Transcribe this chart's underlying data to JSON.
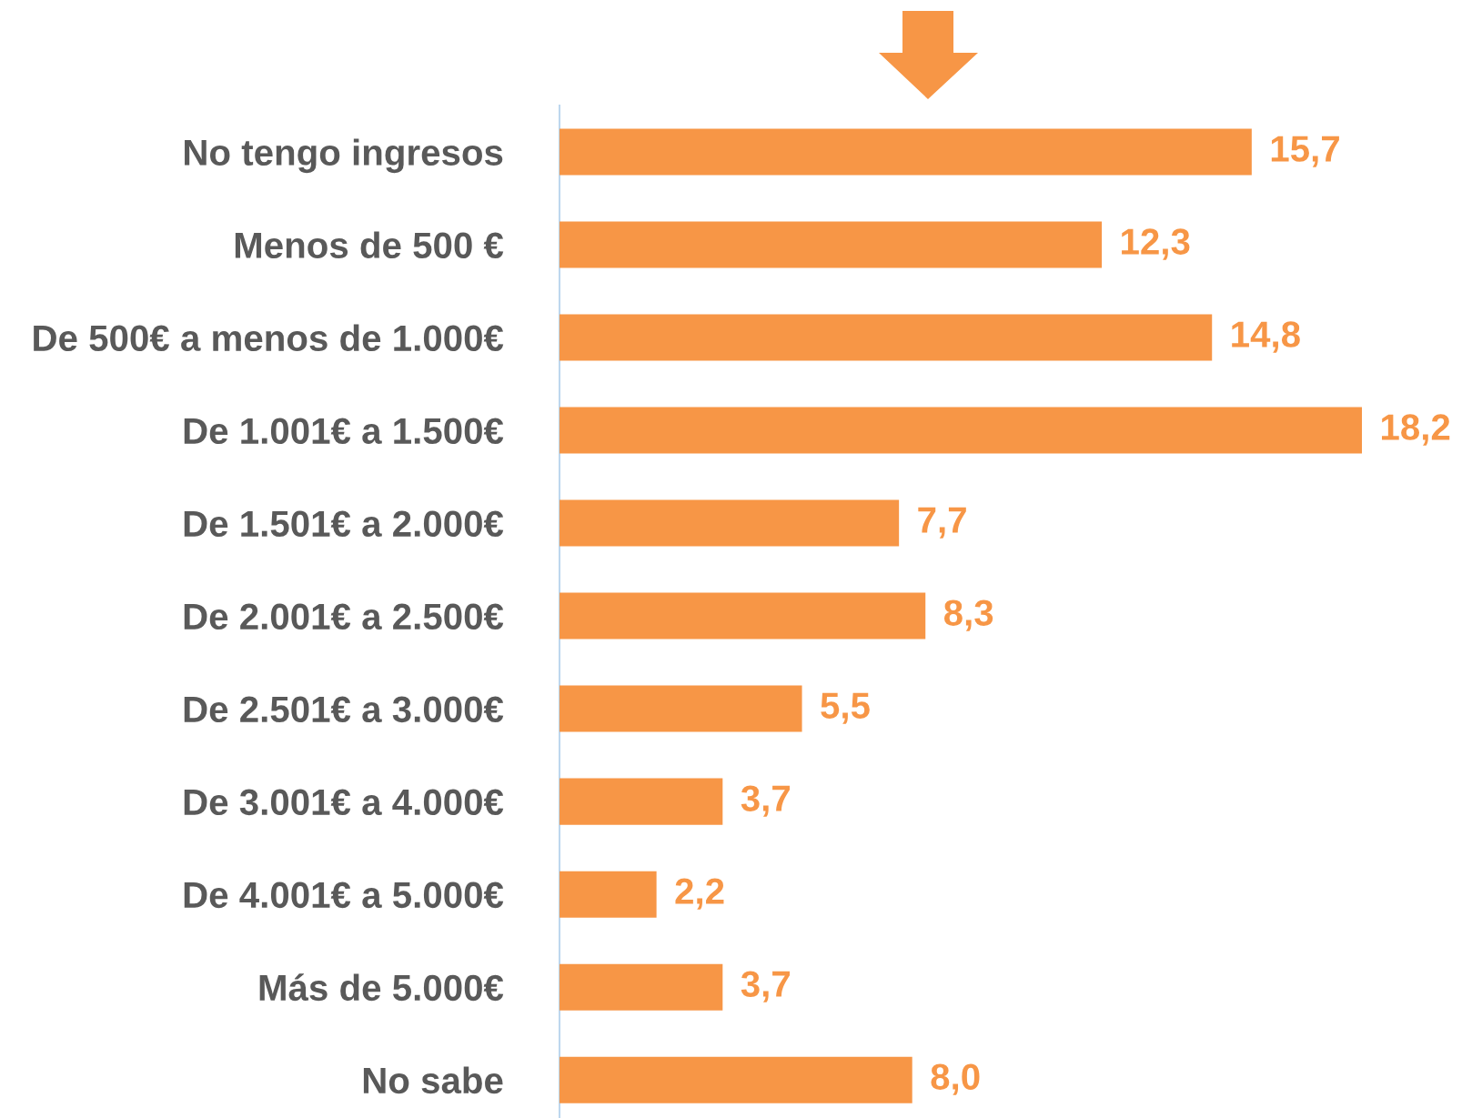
{
  "chart_data": {
    "type": "bar",
    "orientation": "horizontal",
    "categories": [
      "No tengo ingresos",
      "Menos de 500 €",
      "De 500€ a menos de 1.000€",
      "De 1.001€ a 1.500€",
      "De 1.501€ a 2.000€",
      "De 2.001€ a 2.500€",
      "De 2.501€ a 3.000€",
      "De 3.001€ a 4.000€",
      "De 4.001€ a 5.000€",
      "Más de 5.000€",
      "No sabe"
    ],
    "values": [
      15.7,
      12.3,
      14.8,
      18.2,
      7.7,
      8.3,
      5.5,
      3.7,
      2.2,
      3.7,
      8.0
    ],
    "value_labels": [
      "15,7",
      "12,3",
      "14,8",
      "18,2",
      "7,7",
      "8,3",
      "5,5",
      "3,7",
      "2,2",
      "3,7",
      "8,0"
    ],
    "color": "#f79646",
    "grid": false,
    "legend": false,
    "tick_labels": "y"
  }
}
